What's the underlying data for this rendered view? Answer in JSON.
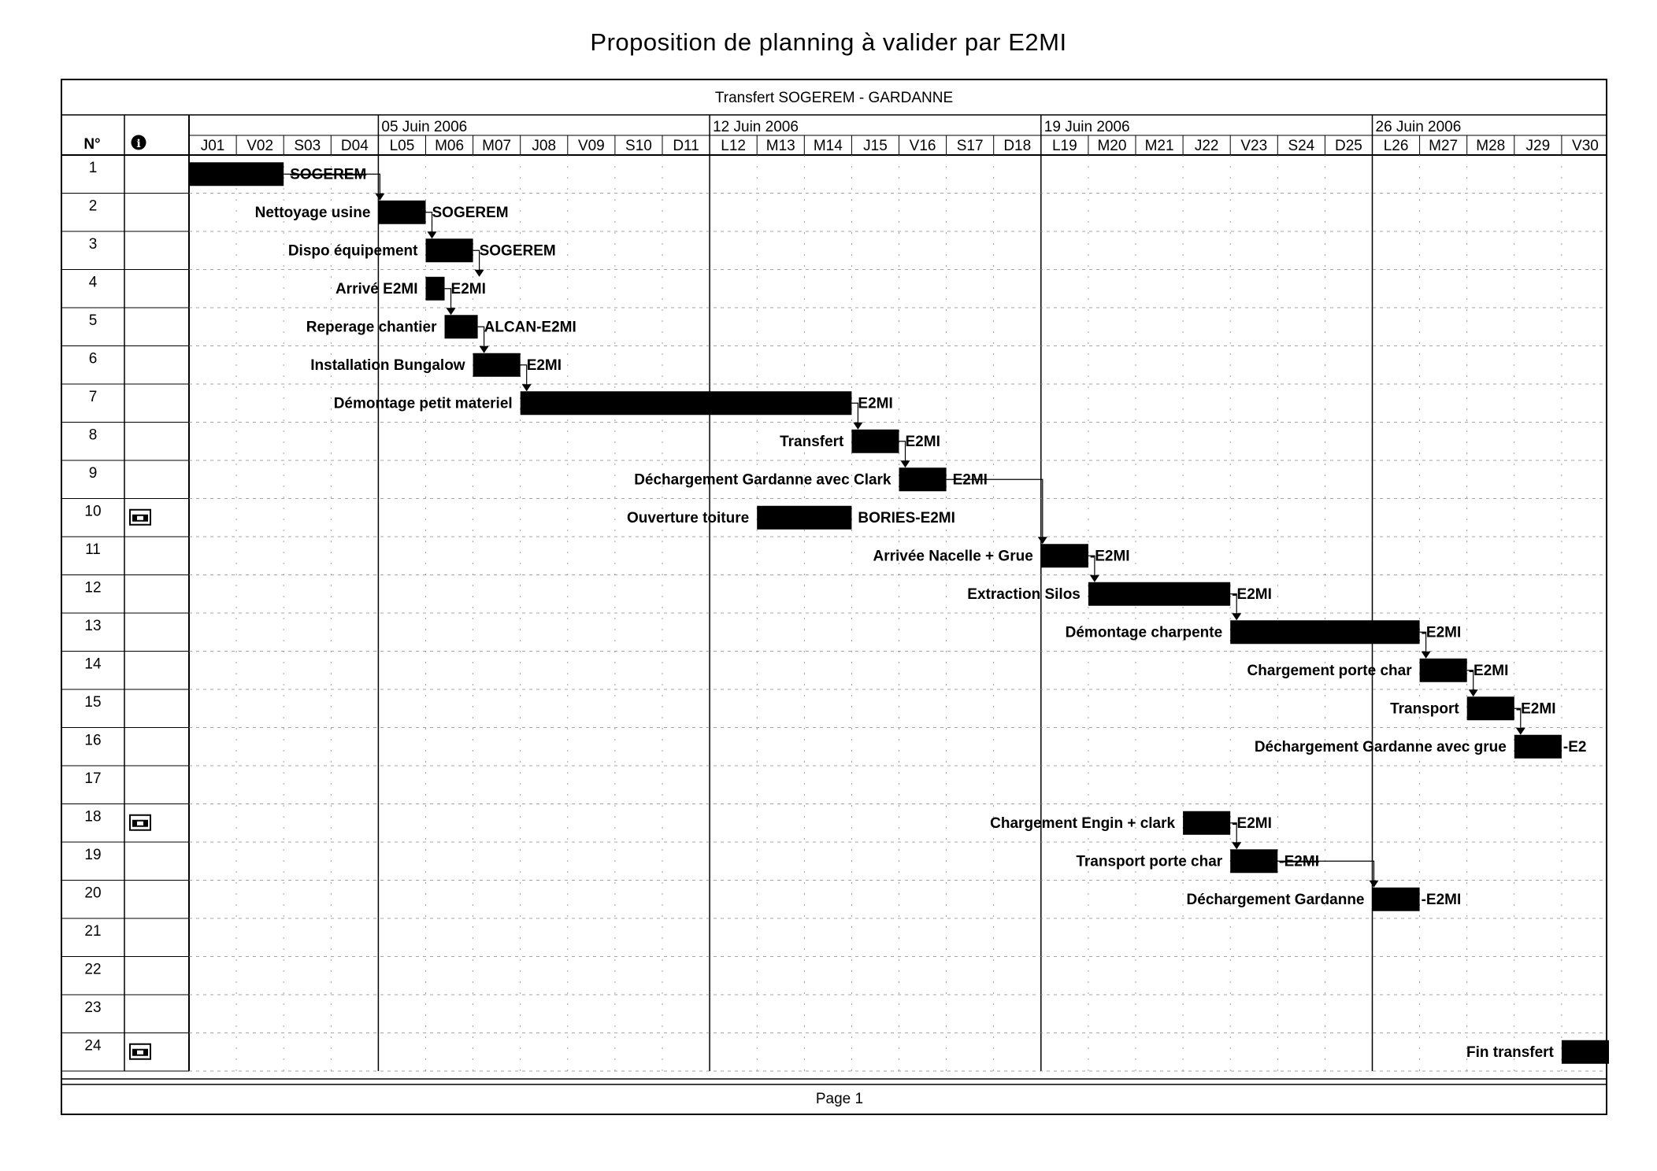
{
  "title": "Proposition de planning à valider par E2MI",
  "project": "Transfert SOGEREM - GARDANNE",
  "columns": {
    "number": "N°",
    "info_icon": "info-icon"
  },
  "weeks": [
    "05 Juin 2006",
    "12 Juin 2006",
    "19 Juin 2006",
    "26 Juin 2006"
  ],
  "days": [
    "J01",
    "V02",
    "S03",
    "D04",
    "L05",
    "M06",
    "M07",
    "J08",
    "V09",
    "S10",
    "D11",
    "L12",
    "M13",
    "M14",
    "J15",
    "V16",
    "S17",
    "D18",
    "L19",
    "M20",
    "M21",
    "J22",
    "V23",
    "S24",
    "D25",
    "L26",
    "M27",
    "M28",
    "J29",
    "V30"
  ],
  "tasks": [
    {
      "n": "1",
      "name": "",
      "resource": "SOGEREM",
      "start": 0,
      "end": 2,
      "strike": true,
      "icon": ""
    },
    {
      "n": "2",
      "name": "Nettoyage usine",
      "resource": "SOGEREM",
      "start": 4,
      "end": 5,
      "icon": ""
    },
    {
      "n": "3",
      "name": "Dispo équipement",
      "resource": "SOGEREM",
      "start": 5,
      "end": 6,
      "icon": ""
    },
    {
      "n": "4",
      "name": "Arrivé E2MI",
      "resource": "E2MI",
      "start": 5,
      "end": 5.4,
      "icon": ""
    },
    {
      "n": "5",
      "name": "Reperage chantier",
      "resource": "ALCAN-E2MI",
      "start": 5.4,
      "end": 6.1,
      "icon": ""
    },
    {
      "n": "6",
      "name": "Installation Bungalow",
      "resource": "E2MI",
      "start": 6,
      "end": 7,
      "icon": ""
    },
    {
      "n": "7",
      "name": "Démontage petit materiel",
      "resource": "E2MI",
      "start": 7,
      "end": 14,
      "icon": ""
    },
    {
      "n": "8",
      "name": "Transfert",
      "resource": "E2MI",
      "start": 14,
      "end": 15,
      "icon": ""
    },
    {
      "n": "9",
      "name": "Déchargement Gardanne avec Clark",
      "resource": "E2MI",
      "start": 15,
      "end": 16,
      "icon": ""
    },
    {
      "n": "10",
      "name": "Ouverture toiture",
      "resource": "BORIES-E2MI",
      "start": 12,
      "end": 14,
      "icon": "calendar-icon"
    },
    {
      "n": "11",
      "name": "Arrivée Nacelle + Grue",
      "resource": "-E2MI",
      "start": 18,
      "end": 19,
      "icon": ""
    },
    {
      "n": "12",
      "name": "Extraction Silos",
      "resource": "-E2MI",
      "start": 19,
      "end": 22,
      "icon": ""
    },
    {
      "n": "13",
      "name": "Démontage charpente",
      "resource": "-E2MI",
      "start": 22,
      "end": 26,
      "icon": ""
    },
    {
      "n": "14",
      "name": "Chargement porte char",
      "resource": "-E2MI",
      "start": 26,
      "end": 27,
      "icon": ""
    },
    {
      "n": "15",
      "name": "Transport",
      "resource": "-E2MI",
      "start": 27,
      "end": 28,
      "icon": ""
    },
    {
      "n": "16",
      "name": "Déchargement Gardanne avec grue",
      "resource": "-E2",
      "start": 28,
      "end": 29,
      "icon": ""
    },
    {
      "n": "17",
      "name": "",
      "resource": "",
      "icon": ""
    },
    {
      "n": "18",
      "name": "Chargement Engin + clark",
      "resource": "-E2MI",
      "start": 21,
      "end": 22,
      "icon": "calendar-icon"
    },
    {
      "n": "19",
      "name": "Transport porte char",
      "resource": "-E2MI",
      "start": 22,
      "end": 23,
      "strike": true,
      "icon": ""
    },
    {
      "n": "20",
      "name": "Déchargement Gardanne",
      "resource": "-E2MI",
      "start": 25,
      "end": 26,
      "icon": ""
    },
    {
      "n": "21",
      "name": "",
      "resource": "",
      "icon": ""
    },
    {
      "n": "22",
      "name": "",
      "resource": "",
      "icon": ""
    },
    {
      "n": "23",
      "name": "",
      "resource": "",
      "icon": ""
    },
    {
      "n": "24",
      "name": "Fin transfert",
      "resource": "",
      "start": 29,
      "end": 30,
      "icon": "calendar-icon"
    }
  ],
  "links": [
    [
      0,
      1
    ],
    [
      1,
      2
    ],
    [
      2,
      3
    ],
    [
      3,
      4
    ],
    [
      4,
      5
    ],
    [
      5,
      6
    ],
    [
      6,
      7
    ],
    [
      7,
      8
    ],
    [
      8,
      10
    ],
    [
      10,
      11
    ],
    [
      11,
      12
    ],
    [
      12,
      13
    ],
    [
      13,
      14
    ],
    [
      14,
      15
    ],
    [
      17,
      18
    ],
    [
      18,
      19
    ]
  ],
  "footer": "Page 1"
}
